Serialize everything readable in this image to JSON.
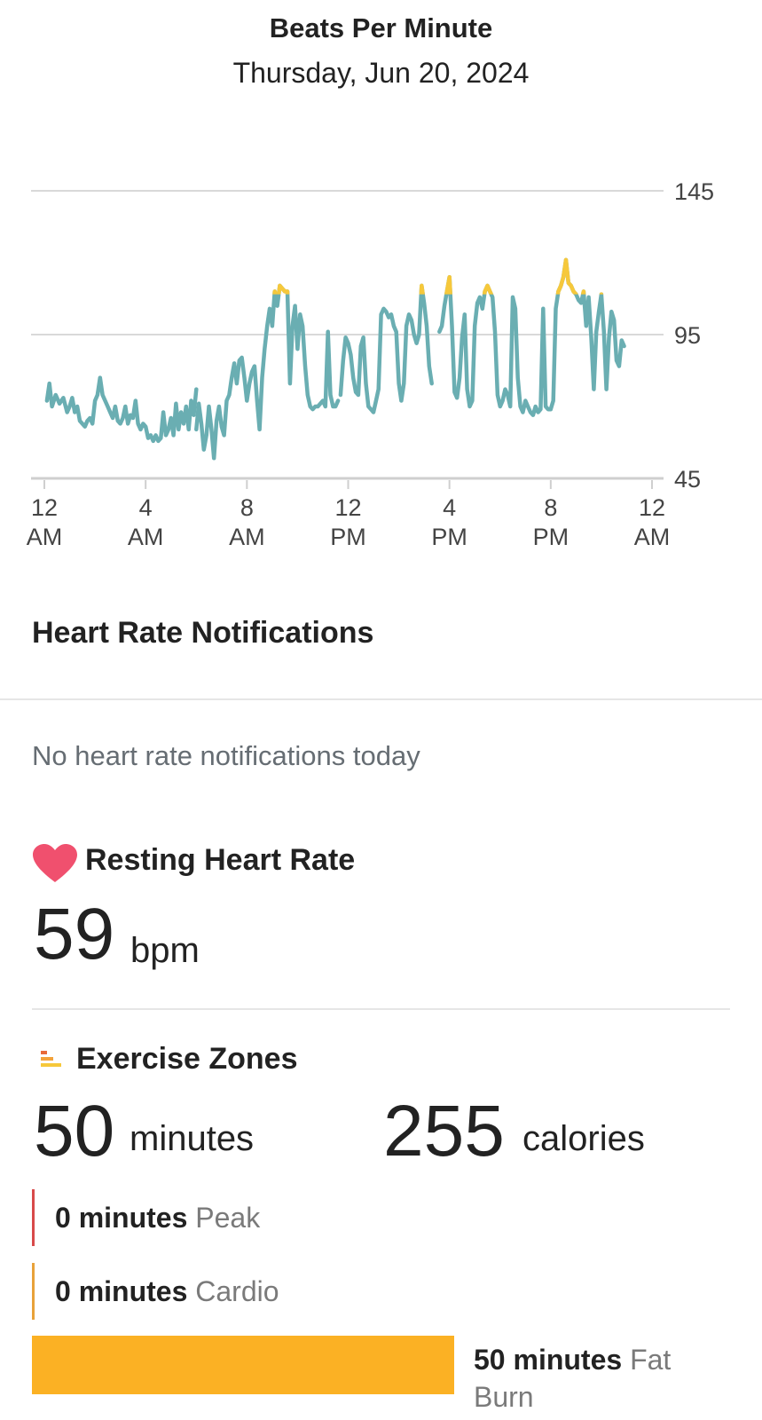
{
  "header": {
    "title": "Beats Per Minute",
    "date": "Thursday, Jun 20, 2024"
  },
  "chart_data": {
    "type": "line",
    "title": "Beats Per Minute",
    "xlabel": "",
    "ylabel": "",
    "y_ticks": [
      "145",
      "95",
      "45"
    ],
    "ylim": [
      45,
      145
    ],
    "x_ticks": [
      {
        "hour": 0,
        "line1": "12",
        "line2": "AM"
      },
      {
        "hour": 4,
        "line1": "4",
        "line2": "AM"
      },
      {
        "hour": 8,
        "line1": "8",
        "line2": "AM"
      },
      {
        "hour": 12,
        "line1": "12",
        "line2": "PM"
      },
      {
        "hour": 16,
        "line1": "4",
        "line2": "PM"
      },
      {
        "hour": 20,
        "line1": "8",
        "line2": "PM"
      },
      {
        "hour": 24,
        "line1": "12",
        "line2": "AM"
      }
    ],
    "xlim_hours": [
      0,
      24
    ],
    "grid": true,
    "zone_threshold_bpm": 109,
    "colors": {
      "normal": "#6aaeb2",
      "zone": "#f6c83b",
      "grid": "#d9d9d9"
    },
    "series": [
      {
        "segments": [
          [
            [
              0.1,
              72
            ],
            [
              0.2,
              78
            ],
            [
              0.3,
              70
            ],
            [
              0.45,
              74
            ],
            [
              0.6,
              71
            ],
            [
              0.75,
              73
            ],
            [
              0.9,
              68
            ],
            [
              1.0,
              70
            ],
            [
              1.1,
              73
            ],
            [
              1.2,
              68
            ],
            [
              1.3,
              70
            ],
            [
              1.4,
              65
            ],
            [
              1.5,
              64
            ],
            [
              1.6,
              63
            ],
            [
              1.7,
              65
            ],
            [
              1.8,
              66
            ],
            [
              1.9,
              64
            ],
            [
              2.0,
              72
            ],
            [
              2.1,
              74
            ],
            [
              2.2,
              80
            ],
            [
              2.3,
              74
            ],
            [
              2.4,
              72
            ],
            [
              2.5,
              70
            ],
            [
              2.6,
              68
            ],
            [
              2.7,
              66
            ],
            [
              2.8,
              70
            ],
            [
              2.9,
              65
            ],
            [
              3.0,
              64
            ],
            [
              3.1,
              66
            ],
            [
              3.2,
              70
            ],
            [
              3.3,
              64
            ],
            [
              3.4,
              67
            ],
            [
              3.5,
              66
            ],
            [
              3.6,
              72
            ],
            [
              3.7,
              64
            ],
            [
              3.8,
              62
            ],
            [
              3.9,
              64
            ],
            [
              4.0,
              63
            ],
            [
              4.1,
              59
            ],
            [
              4.2,
              60
            ],
            [
              4.3,
              58
            ],
            [
              4.4,
              60
            ],
            [
              4.5,
              58
            ],
            [
              4.6,
              59
            ],
            [
              4.7,
              68
            ],
            [
              4.8,
              60
            ],
            [
              4.9,
              62
            ],
            [
              5.0,
              66
            ],
            [
              5.1,
              60
            ],
            [
              5.2,
              71
            ],
            [
              5.3,
              62
            ],
            [
              5.4,
              68
            ],
            [
              5.5,
              64
            ],
            [
              5.6,
              70
            ],
            [
              5.7,
              62
            ],
            [
              5.8,
              72
            ],
            [
              5.9,
              67
            ],
            [
              6.0,
              76
            ]
          ],
          [
            [
              6.0,
              62
            ],
            [
              6.1,
              71
            ],
            [
              6.2,
              64
            ],
            [
              6.3,
              55
            ],
            [
              6.4,
              60
            ],
            [
              6.5,
              70
            ],
            [
              6.6,
              62
            ],
            [
              6.7,
              52
            ],
            [
              6.8,
              65
            ],
            [
              6.9,
              70
            ],
            [
              7.0,
              63
            ],
            [
              7.1,
              60
            ],
            [
              7.2,
              72
            ],
            [
              7.3,
              74
            ],
            [
              7.4,
              80
            ],
            [
              7.5,
              85
            ],
            [
              7.6,
              78
            ],
            [
              7.7,
              86
            ],
            [
              7.8,
              87
            ],
            [
              7.9,
              80
            ],
            [
              8.0,
              72
            ],
            [
              8.1,
              78
            ],
            [
              8.2,
              82
            ],
            [
              8.3,
              84
            ],
            [
              8.4,
              72
            ],
            [
              8.5,
              62
            ],
            [
              8.6,
              80
            ],
            [
              8.7,
              90
            ],
            [
              8.8,
              98
            ],
            [
              8.9,
              104
            ],
            [
              9.0,
              98
            ],
            [
              9.1,
              110
            ],
            [
              9.2,
              105
            ],
            [
              9.3,
              112
            ],
            [
              9.4,
              111
            ],
            [
              9.5,
              110
            ],
            [
              9.6,
              110
            ],
            [
              9.7,
              78
            ],
            [
              9.8,
              98
            ],
            [
              9.9,
              105
            ],
            [
              10.0,
              90
            ],
            [
              10.1,
              102
            ],
            [
              10.2,
              98
            ],
            [
              10.3,
              84
            ],
            [
              10.4,
              74
            ],
            [
              10.5,
              70
            ],
            [
              10.6,
              69
            ],
            [
              10.7,
              70
            ],
            [
              10.8,
              70
            ],
            [
              10.9,
              71
            ],
            [
              11.0,
              72
            ],
            [
              11.1,
              70
            ],
            [
              11.2,
              96
            ],
            [
              11.3,
              74
            ],
            [
              11.4,
              70
            ],
            [
              11.5,
              70
            ],
            [
              11.6,
              72
            ]
          ],
          [
            [
              11.7,
              74
            ],
            [
              11.8,
              86
            ],
            [
              11.9,
              94
            ],
            [
              12.0,
              92
            ],
            [
              12.1,
              88
            ],
            [
              12.2,
              80
            ],
            [
              12.3,
              75
            ],
            [
              12.4,
              74
            ],
            [
              12.5,
              91
            ],
            [
              12.6,
              94
            ],
            [
              12.7,
              78
            ],
            [
              12.8,
              70
            ],
            [
              12.9,
              69
            ],
            [
              13.0,
              68
            ],
            [
              13.1,
              72
            ],
            [
              13.2,
              76
            ],
            [
              13.3,
              102
            ],
            [
              13.4,
              104
            ],
            [
              13.5,
              103
            ],
            [
              13.6,
              101
            ],
            [
              13.7,
              102
            ],
            [
              13.8,
              98
            ],
            [
              13.9,
              96
            ],
            [
              14.0,
              78
            ],
            [
              14.1,
              72
            ],
            [
              14.2,
              78
            ],
            [
              14.3,
              98
            ],
            [
              14.4,
              102
            ],
            [
              14.5,
              100
            ],
            [
              14.6,
              95
            ],
            [
              14.7,
              92
            ],
            [
              14.8,
              95
            ],
            [
              14.9,
              112
            ],
            [
              15.0,
              106
            ],
            [
              15.1,
              98
            ],
            [
              15.2,
              84
            ],
            [
              15.3,
              78
            ]
          ],
          [
            [
              15.6,
              96
            ],
            [
              15.7,
              98
            ],
            [
              15.8,
              105
            ],
            [
              15.9,
              110
            ],
            [
              16.0,
              115
            ],
            [
              16.1,
              98
            ],
            [
              16.2,
              75
            ],
            [
              16.3,
              73
            ],
            [
              16.4,
              80
            ],
            [
              16.5,
              94
            ],
            [
              16.6,
              102
            ],
            [
              16.7,
              76
            ],
            [
              16.8,
              70
            ],
            [
              16.9,
              72
            ],
            [
              17.0,
              98
            ],
            [
              17.1,
              106
            ],
            [
              17.2,
              108
            ],
            [
              17.3,
              104
            ],
            [
              17.4,
              110
            ],
            [
              17.5,
              112
            ],
            [
              17.6,
              110
            ],
            [
              17.7,
              108
            ],
            [
              17.8,
              96
            ],
            [
              17.9,
              74
            ],
            [
              18.0,
              70
            ],
            [
              18.1,
              72
            ],
            [
              18.2,
              76
            ],
            [
              18.3,
              74
            ],
            [
              18.4,
              70
            ],
            [
              18.5,
              108
            ],
            [
              18.6,
              104
            ],
            [
              18.7,
              80
            ],
            [
              18.8,
              70
            ],
            [
              18.9,
              68
            ],
            [
              19.0,
              72
            ],
            [
              19.1,
              70
            ],
            [
              19.2,
              68
            ],
            [
              19.3,
              67
            ],
            [
              19.4,
              70
            ],
            [
              19.5,
              68
            ],
            [
              19.6,
              69
            ],
            [
              19.7,
              104
            ],
            [
              19.8,
              70
            ],
            [
              19.9,
              69
            ],
            [
              20.0,
              69
            ],
            [
              20.1,
              72
            ],
            [
              20.2,
              104
            ],
            [
              20.3,
              110
            ],
            [
              20.4,
              112
            ],
            [
              20.5,
              115
            ],
            [
              20.6,
              121
            ],
            [
              20.7,
              113
            ],
            [
              20.8,
              112
            ],
            [
              20.9,
              110
            ],
            [
              21.0,
              109
            ],
            [
              21.1,
              107
            ],
            [
              21.2,
              106
            ],
            [
              21.3,
              110
            ],
            [
              21.4,
              98
            ],
            [
              21.5,
              108
            ],
            [
              21.6,
              94
            ],
            [
              21.7,
              76
            ],
            [
              21.8,
              96
            ],
            [
              21.9,
              103
            ],
            [
              22.0,
              109
            ],
            [
              22.1,
              96
            ],
            [
              22.2,
              76
            ],
            [
              22.3,
              94
            ],
            [
              22.4,
              103
            ],
            [
              22.5,
              100
            ],
            [
              22.6,
              86
            ],
            [
              22.7,
              84
            ],
            [
              22.8,
              93
            ],
            [
              22.9,
              91
            ]
          ]
        ]
      }
    ]
  },
  "notifications": {
    "title": "Heart Rate Notifications",
    "empty_text": "No heart rate notifications today"
  },
  "resting": {
    "title": "Resting Heart Rate",
    "value": "59",
    "unit": "bpm",
    "icon": "heart-icon",
    "icon_color": "#f0506e"
  },
  "exercise": {
    "title": "Exercise Zones",
    "icon": "zones-bars-icon",
    "minutes_value": "50",
    "minutes_unit": "minutes",
    "calories_value": "255",
    "calories_unit": "calories",
    "zones": [
      {
        "minutes": "0 minutes",
        "name": "Peak",
        "color": "#d84a4a"
      },
      {
        "minutes": "0 minutes",
        "name": "Cardio",
        "color": "#e8a23a"
      },
      {
        "minutes": "50 minutes",
        "name_line1": "Fat",
        "name_line2": "Burn",
        "color": "#fbb124",
        "fraction": 1.0
      }
    ]
  }
}
